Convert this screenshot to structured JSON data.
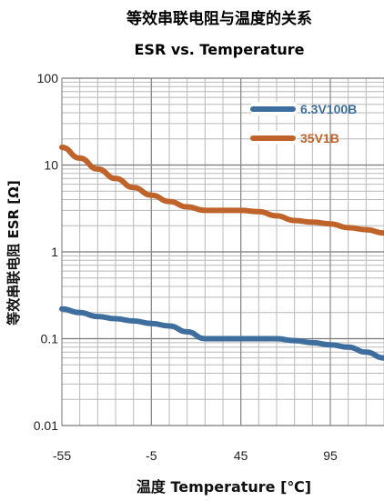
{
  "chart_data": {
    "type": "line",
    "title": "等效串联电阻与温度的关系",
    "subtitle": "ESR vs. Temperature",
    "xlabel": "温度 Temperature [℃]",
    "ylabel": "等效串联电阻 ESR [Ω]",
    "x_scale": "linear",
    "y_scale": "log",
    "xlim": [
      -55,
      125
    ],
    "ylim": [
      0.01,
      100
    ],
    "x_ticks": [
      -55,
      -5,
      45,
      95
    ],
    "x_tick_labels": [
      "-55",
      "-5",
      "45",
      "95"
    ],
    "y_ticks": [
      0.01,
      0.1,
      1,
      10,
      100
    ],
    "y_tick_labels": [
      "0.01",
      "0.1",
      "1",
      "10",
      "100"
    ],
    "grid": true,
    "legend_position": "top-right",
    "series": [
      {
        "name": "6.3V100B",
        "color": "#3e6e9e",
        "x": [
          -55,
          -45,
          -35,
          -25,
          -15,
          -5,
          5,
          15,
          25,
          35,
          45,
          55,
          65,
          75,
          85,
          95,
          105,
          115,
          125
        ],
        "y": [
          0.22,
          0.2,
          0.18,
          0.17,
          0.16,
          0.15,
          0.14,
          0.12,
          0.1,
          0.1,
          0.1,
          0.1,
          0.1,
          0.095,
          0.09,
          0.085,
          0.08,
          0.07,
          0.06
        ]
      },
      {
        "name": "35V1B",
        "color": "#c0632a",
        "x": [
          -55,
          -45,
          -35,
          -25,
          -15,
          -5,
          5,
          15,
          25,
          35,
          45,
          55,
          65,
          75,
          85,
          95,
          105,
          115,
          125
        ],
        "y": [
          16,
          12,
          9,
          7,
          5.5,
          4.5,
          3.8,
          3.3,
          3.0,
          3.0,
          3.0,
          2.9,
          2.6,
          2.3,
          2.2,
          2.1,
          1.9,
          1.8,
          1.65
        ]
      }
    ]
  }
}
